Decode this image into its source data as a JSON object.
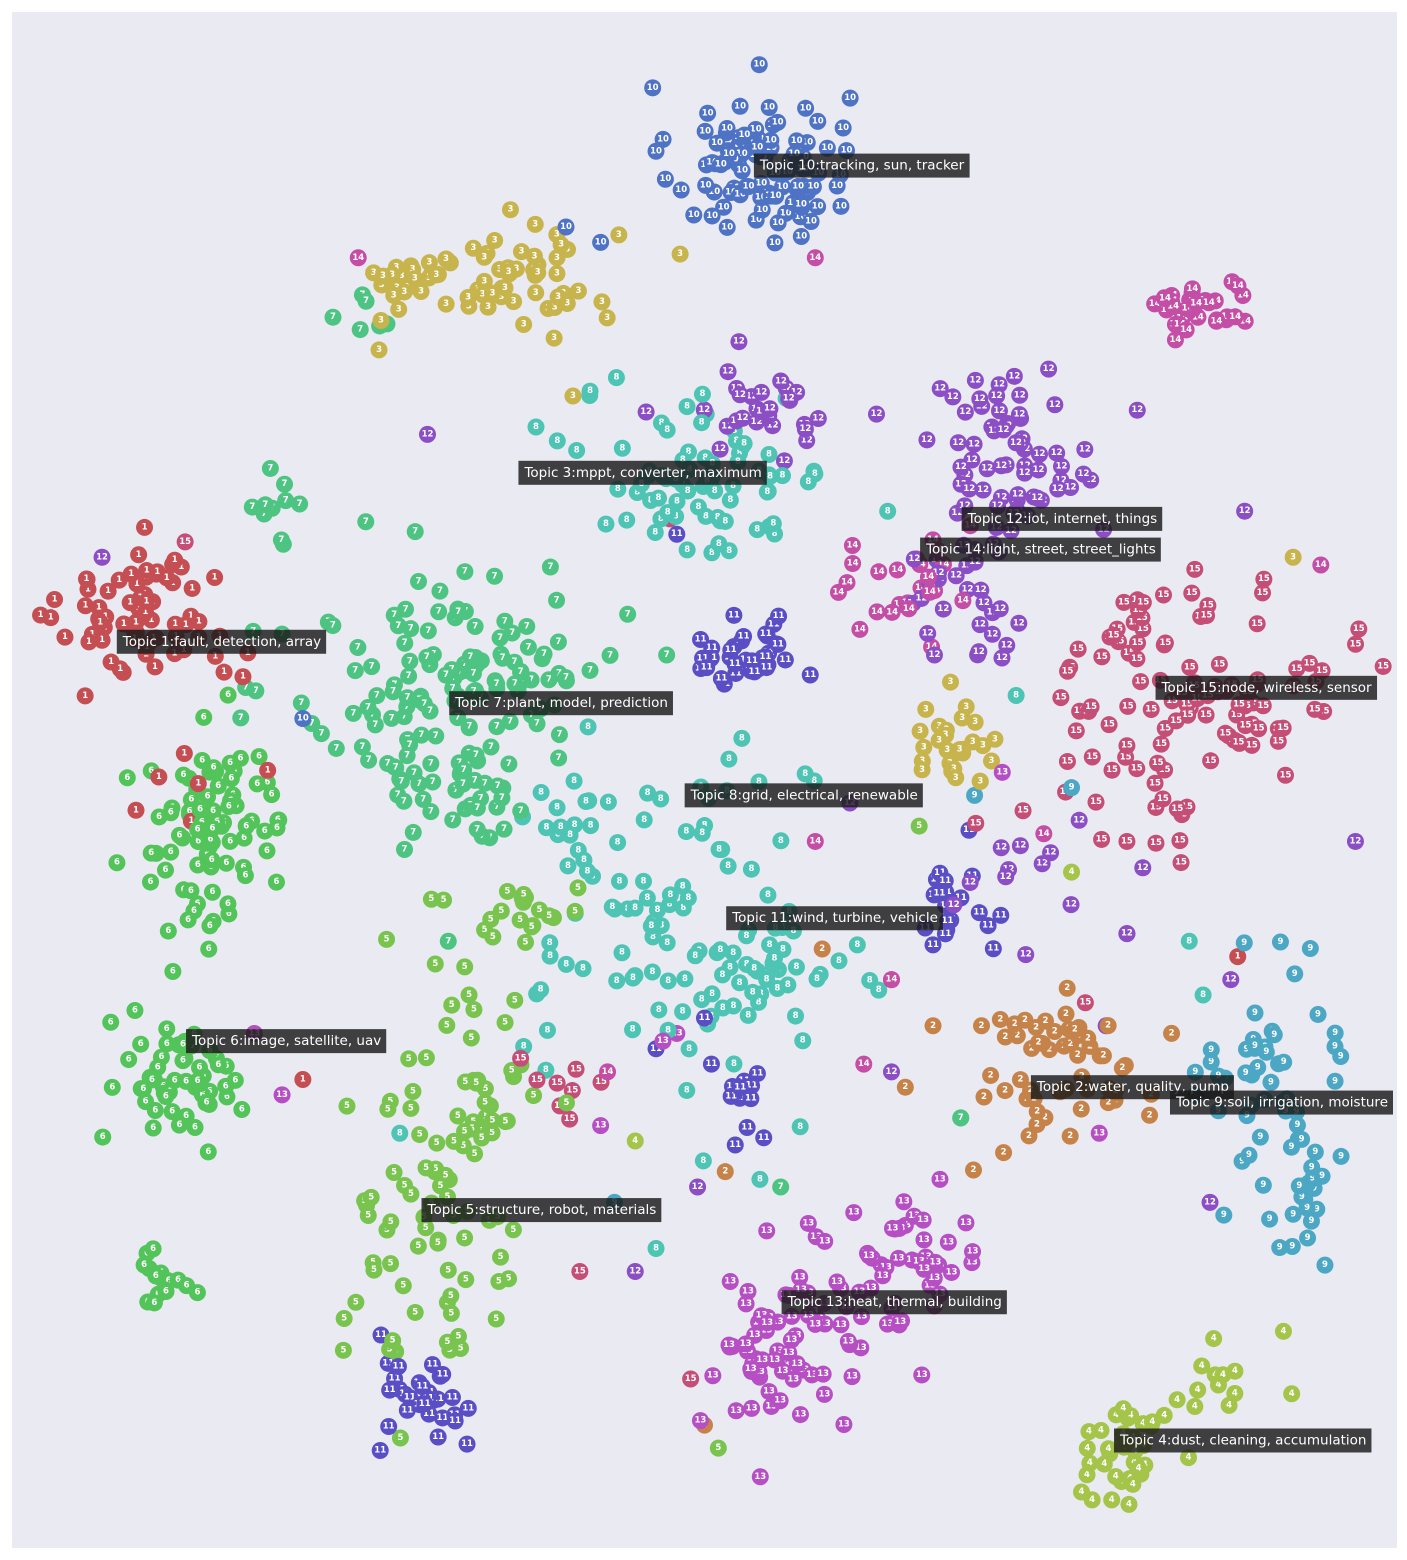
{
  "chart_data": {
    "type": "scatter",
    "title": "",
    "xlabel": "",
    "ylabel": "",
    "grid": false,
    "legend": "none",
    "xlim": [
      0,
      100
    ],
    "ylim": [
      0,
      100
    ],
    "background": "#eaeaf2",
    "topics": [
      {
        "id": 1,
        "label": "Topic 1:fault, detection, array",
        "color": "#c44e52",
        "x": 8,
        "y": 59
      },
      {
        "id": 2,
        "label": "Topic 2:water, quality, pump",
        "color": "#c5834a",
        "x": 74,
        "y": 30
      },
      {
        "id": 3,
        "label": "Topic 3:mppt, converter, maximum",
        "color": "#c8b44c",
        "x": 37,
        "y": 70
      },
      {
        "id": 4,
        "label": "Topic 4:dust, cleaning, accumulation",
        "color": "#a5c44a",
        "x": 80,
        "y": 7
      },
      {
        "id": 5,
        "label": "Topic 5:structure, robot, materials",
        "color": "#78c44e",
        "x": 30,
        "y": 22
      },
      {
        "id": 6,
        "label": "Topic 6:image, satellite, uav",
        "color": "#52c45a",
        "x": 13,
        "y": 33
      },
      {
        "id": 7,
        "label": "Topic 7:plant, model, prediction",
        "color": "#4ec483",
        "x": 32,
        "y": 55
      },
      {
        "id": 8,
        "label": "Topic 8:grid, electrical, renewable",
        "color": "#4ec4b4",
        "x": 49,
        "y": 49
      },
      {
        "id": 9,
        "label": "Topic 9:soil, irrigation, moisture",
        "color": "#4ca7c4",
        "x": 89,
        "y": 29
      },
      {
        "id": 10,
        "label": "Topic 10:tracking, sun, tracker",
        "color": "#4e73c4",
        "x": 54,
        "y": 90
      },
      {
        "id": 11,
        "label": "Topic 11:wind, turbine, vehicle",
        "color": "#5a4ec4",
        "x": 52,
        "y": 41
      },
      {
        "id": 12,
        "label": "Topic 12:iot, internet, things",
        "color": "#8c4ec4",
        "x": 69,
        "y": 67
      },
      {
        "id": 13,
        "label": "Topic 13:heat, thermal, building",
        "color": "#b64ec4",
        "x": 56,
        "y": 16
      },
      {
        "id": 14,
        "label": "Topic 14:light, street, street_lights",
        "color": "#c44ea6",
        "x": 66,
        "y": 65
      },
      {
        "id": 15,
        "label": "Topic 15:node, wireless, sensor",
        "color": "#c44e75",
        "x": 83,
        "y": 56
      }
    ],
    "clusters": [
      {
        "topic": 10,
        "cx": 54.0,
        "cy": 90.0,
        "sx": 3.2,
        "sy": 2.6,
        "n": 95
      },
      {
        "topic": 3,
        "cx": 36.0,
        "cy": 83.0,
        "sx": 3.8,
        "sy": 1.6,
        "n": 55
      },
      {
        "topic": 3,
        "cx": 28.5,
        "cy": 82.5,
        "sx": 1.6,
        "sy": 1.0,
        "n": 18
      },
      {
        "topic": 7,
        "cx": 26.0,
        "cy": 80.5,
        "sx": 1.0,
        "sy": 0.9,
        "n": 6
      },
      {
        "topic": 14,
        "cx": 85.5,
        "cy": 81.0,
        "sx": 2.0,
        "sy": 1.1,
        "n": 32
      },
      {
        "topic": 1,
        "cx": 10.0,
        "cy": 60.5,
        "sx": 3.2,
        "sy": 2.2,
        "n": 70
      },
      {
        "topic": 7,
        "cx": 32.0,
        "cy": 57.0,
        "sx": 6.0,
        "sy": 3.5,
        "n": 120
      },
      {
        "topic": 7,
        "cx": 33.0,
        "cy": 49.0,
        "sx": 3.0,
        "sy": 2.0,
        "n": 40
      },
      {
        "topic": 8,
        "cx": 50.0,
        "cy": 70.0,
        "sx": 4.5,
        "sy": 2.8,
        "n": 75
      },
      {
        "topic": 12,
        "cx": 54.5,
        "cy": 74.0,
        "sx": 3.0,
        "sy": 1.5,
        "n": 30
      },
      {
        "topic": 12,
        "cx": 72.0,
        "cy": 71.0,
        "sx": 3.2,
        "sy": 3.0,
        "n": 70
      },
      {
        "topic": 12,
        "cx": 68.0,
        "cy": 61.5,
        "sx": 2.2,
        "sy": 1.8,
        "n": 25
      },
      {
        "topic": 14,
        "cx": 65.0,
        "cy": 62.0,
        "sx": 3.0,
        "sy": 1.8,
        "n": 25
      },
      {
        "topic": 11,
        "cx": 53.0,
        "cy": 58.5,
        "sx": 2.0,
        "sy": 1.4,
        "n": 35
      },
      {
        "topic": 15,
        "cx": 86.0,
        "cy": 56.5,
        "sx": 5.0,
        "sy": 3.2,
        "n": 95
      },
      {
        "topic": 3,
        "cx": 68.0,
        "cy": 52.5,
        "sx": 1.6,
        "sy": 1.5,
        "n": 28
      },
      {
        "topic": 6,
        "cx": 14.5,
        "cy": 46.5,
        "sx": 3.0,
        "sy": 3.2,
        "n": 85
      },
      {
        "topic": 8,
        "cx": 48.0,
        "cy": 40.0,
        "sx": 5.0,
        "sy": 5.5,
        "n": 90
      },
      {
        "topic": 11,
        "cx": 68.0,
        "cy": 42.0,
        "sx": 1.6,
        "sy": 2.0,
        "n": 20
      },
      {
        "topic": 2,
        "cx": 76.0,
        "cy": 31.0,
        "sx": 3.0,
        "sy": 2.8,
        "n": 55
      },
      {
        "topic": 9,
        "cx": 91.0,
        "cy": 30.5,
        "sx": 2.5,
        "sy": 4.0,
        "n": 50
      },
      {
        "topic": 6,
        "cx": 12.0,
        "cy": 30.5,
        "sx": 2.2,
        "sy": 2.2,
        "n": 55
      },
      {
        "topic": 5,
        "cx": 31.0,
        "cy": 24.0,
        "sx": 3.5,
        "sy": 7.0,
        "n": 80
      },
      {
        "topic": 5,
        "cx": 33.5,
        "cy": 29.0,
        "sx": 2.5,
        "sy": 1.8,
        "n": 20
      },
      {
        "topic": 11,
        "cx": 30.0,
        "cy": 10.0,
        "sx": 2.0,
        "sy": 1.8,
        "n": 30
      },
      {
        "topic": 13,
        "cx": 55.5,
        "cy": 12.5,
        "sx": 3.0,
        "sy": 2.6,
        "n": 65
      },
      {
        "topic": 13,
        "cx": 64.0,
        "cy": 18.0,
        "sx": 3.0,
        "sy": 2.2,
        "n": 45
      },
      {
        "topic": 6,
        "cx": 11.0,
        "cy": 17.5,
        "sx": 1.2,
        "sy": 1.2,
        "n": 16
      },
      {
        "topic": 4,
        "cx": 80.5,
        "cy": 6.5,
        "sx": 1.8,
        "sy": 1.6,
        "n": 35
      },
      {
        "topic": 4,
        "cx": 87.0,
        "cy": 11.5,
        "sx": 2.0,
        "sy": 1.8,
        "n": 14
      },
      {
        "topic": 11,
        "cx": 53.5,
        "cy": 29.5,
        "sx": 1.2,
        "sy": 1.3,
        "n": 12
      },
      {
        "topic": 15,
        "cx": 82.0,
        "cy": 48.5,
        "sx": 3.0,
        "sy": 1.5,
        "n": 15
      },
      {
        "topic": 12,
        "cx": 74.0,
        "cy": 43.5,
        "sx": 2.5,
        "sy": 2.0,
        "n": 12
      },
      {
        "topic": 8,
        "cx": 54.0,
        "cy": 36.5,
        "sx": 2.5,
        "sy": 1.8,
        "n": 25
      },
      {
        "topic": 5,
        "cx": 36.5,
        "cy": 41.5,
        "sx": 2.5,
        "sy": 1.2,
        "n": 18
      },
      {
        "topic": 9,
        "cx": 93.5,
        "cy": 22.0,
        "sx": 1.2,
        "sy": 2.5,
        "n": 16
      },
      {
        "topic": 1,
        "cx": 13.5,
        "cy": 50.0,
        "sx": 2.0,
        "sy": 1.5,
        "n": 6
      },
      {
        "topic": 8,
        "cx": 40.5,
        "cy": 47.5,
        "sx": 1.8,
        "sy": 1.5,
        "n": 15
      },
      {
        "topic": 15,
        "cx": 39.0,
        "cy": 30.0,
        "sx": 2.5,
        "sy": 1.2,
        "n": 8
      },
      {
        "topic": 7,
        "cx": 19.5,
        "cy": 68.5,
        "sx": 0.8,
        "sy": 1.6,
        "n": 10
      }
    ],
    "scatter": [
      {
        "topic": 10,
        "x": 42.5,
        "y": 85.0
      },
      {
        "topic": 10,
        "x": 40.0,
        "y": 86.0
      },
      {
        "topic": 14,
        "x": 58.0,
        "y": 84.0
      },
      {
        "topic": 14,
        "x": 25.0,
        "y": 84.0
      },
      {
        "topic": 3,
        "x": 40.5,
        "y": 75.0
      },
      {
        "topic": 3,
        "x": 26.5,
        "y": 78.0
      },
      {
        "topic": 12,
        "x": 30.0,
        "y": 72.5
      },
      {
        "topic": 15,
        "x": 12.5,
        "y": 65.5
      },
      {
        "topic": 12,
        "x": 6.5,
        "y": 64.5
      },
      {
        "topic": 7,
        "x": 19.5,
        "y": 59.5
      },
      {
        "topic": 10,
        "x": 21.0,
        "y": 54.0
      },
      {
        "topic": 11,
        "x": 48.0,
        "y": 66.0
      },
      {
        "topic": 15,
        "x": 47.5,
        "y": 67.0
      },
      {
        "topic": 12,
        "x": 89.0,
        "y": 67.5
      },
      {
        "topic": 3,
        "x": 92.5,
        "y": 64.5
      },
      {
        "topic": 14,
        "x": 94.5,
        "y": 64.0
      },
      {
        "topic": 8,
        "x": 72.5,
        "y": 55.5
      },
      {
        "topic": 15,
        "x": 78.0,
        "y": 51.5
      },
      {
        "topic": 12,
        "x": 60.5,
        "y": 48.5
      },
      {
        "topic": 14,
        "x": 58.0,
        "y": 46.0
      },
      {
        "topic": 5,
        "x": 65.5,
        "y": 47.0
      },
      {
        "topic": 4,
        "x": 76.5,
        "y": 44.0
      },
      {
        "topic": 12,
        "x": 80.5,
        "y": 40.0
      },
      {
        "topic": 7,
        "x": 31.5,
        "y": 39.5
      },
      {
        "topic": 5,
        "x": 33.0,
        "y": 36.0
      },
      {
        "topic": 13,
        "x": 48.0,
        "y": 33.5
      },
      {
        "topic": 11,
        "x": 50.0,
        "y": 34.5
      },
      {
        "topic": 14,
        "x": 63.5,
        "y": 37.0
      },
      {
        "topic": 2,
        "x": 58.5,
        "y": 39.0
      },
      {
        "topic": 1,
        "x": 21.0,
        "y": 30.5
      },
      {
        "topic": 13,
        "x": 17.5,
        "y": 33.5
      },
      {
        "topic": 13,
        "x": 19.5,
        "y": 29.5
      },
      {
        "topic": 8,
        "x": 28.0,
        "y": 27.0
      },
      {
        "topic": 14,
        "x": 43.0,
        "y": 31.0
      },
      {
        "topic": 13,
        "x": 47.0,
        "y": 33.0
      },
      {
        "topic": 13,
        "x": 42.5,
        "y": 27.5
      },
      {
        "topic": 4,
        "x": 45.0,
        "y": 26.5
      },
      {
        "topic": 12,
        "x": 45.0,
        "y": 18.0
      },
      {
        "topic": 15,
        "x": 41.0,
        "y": 18.0
      },
      {
        "topic": 8,
        "x": 46.5,
        "y": 19.5
      },
      {
        "topic": 9,
        "x": 43.5,
        "y": 22.5
      },
      {
        "topic": 15,
        "x": 49.0,
        "y": 11.0
      },
      {
        "topic": 5,
        "x": 51.0,
        "y": 6.5
      },
      {
        "topic": 2,
        "x": 50.0,
        "y": 8.0
      },
      {
        "topic": 12,
        "x": 49.5,
        "y": 23.5
      },
      {
        "topic": 2,
        "x": 51.5,
        "y": 24.5
      },
      {
        "topic": 8,
        "x": 54.0,
        "y": 24.0
      },
      {
        "topic": 7,
        "x": 55.5,
        "y": 23.5
      },
      {
        "topic": 13,
        "x": 67.0,
        "y": 24.0
      },
      {
        "topic": 13,
        "x": 64.5,
        "y": 21.0
      },
      {
        "topic": 7,
        "x": 68.5,
        "y": 28.0
      },
      {
        "topic": 13,
        "x": 78.5,
        "y": 27.0
      },
      {
        "topic": 12,
        "x": 86.5,
        "y": 22.5
      },
      {
        "topic": 12,
        "x": 80.5,
        "y": 40.0
      },
      {
        "topic": 1,
        "x": 88.5,
        "y": 38.5
      },
      {
        "topic": 8,
        "x": 85.0,
        "y": 39.5
      },
      {
        "topic": 12,
        "x": 88.0,
        "y": 37.0
      },
      {
        "topic": 8,
        "x": 86.0,
        "y": 36.0
      },
      {
        "topic": 15,
        "x": 77.5,
        "y": 35.5
      },
      {
        "topic": 12,
        "x": 79.0,
        "y": 34.0
      },
      {
        "topic": 2,
        "x": 70.0,
        "y": 34.0
      },
      {
        "topic": 2,
        "x": 66.5,
        "y": 34.0
      },
      {
        "topic": 14,
        "x": 63.5,
        "y": 37.0
      },
      {
        "topic": 12,
        "x": 63.5,
        "y": 31.0
      },
      {
        "topic": 2,
        "x": 64.5,
        "y": 30.0
      },
      {
        "topic": 14,
        "x": 61.5,
        "y": 31.5
      },
      {
        "topic": 7,
        "x": 68.5,
        "y": 28.0
      },
      {
        "topic": 12,
        "x": 97.0,
        "y": 46.0
      },
      {
        "topic": 9,
        "x": 69.5,
        "y": 49.0
      },
      {
        "topic": 9,
        "x": 76.5,
        "y": 49.5
      },
      {
        "topic": 15,
        "x": 80.5,
        "y": 46.0
      },
      {
        "topic": 15,
        "x": 73.0,
        "y": 48.0
      },
      {
        "topic": 14,
        "x": 74.5,
        "y": 46.5
      },
      {
        "topic": 13,
        "x": 71.5,
        "y": 50.5
      },
      {
        "topic": 11,
        "x": 46.5,
        "y": 32.5
      },
      {
        "topic": 11,
        "x": 50.5,
        "y": 31.5
      }
    ]
  }
}
